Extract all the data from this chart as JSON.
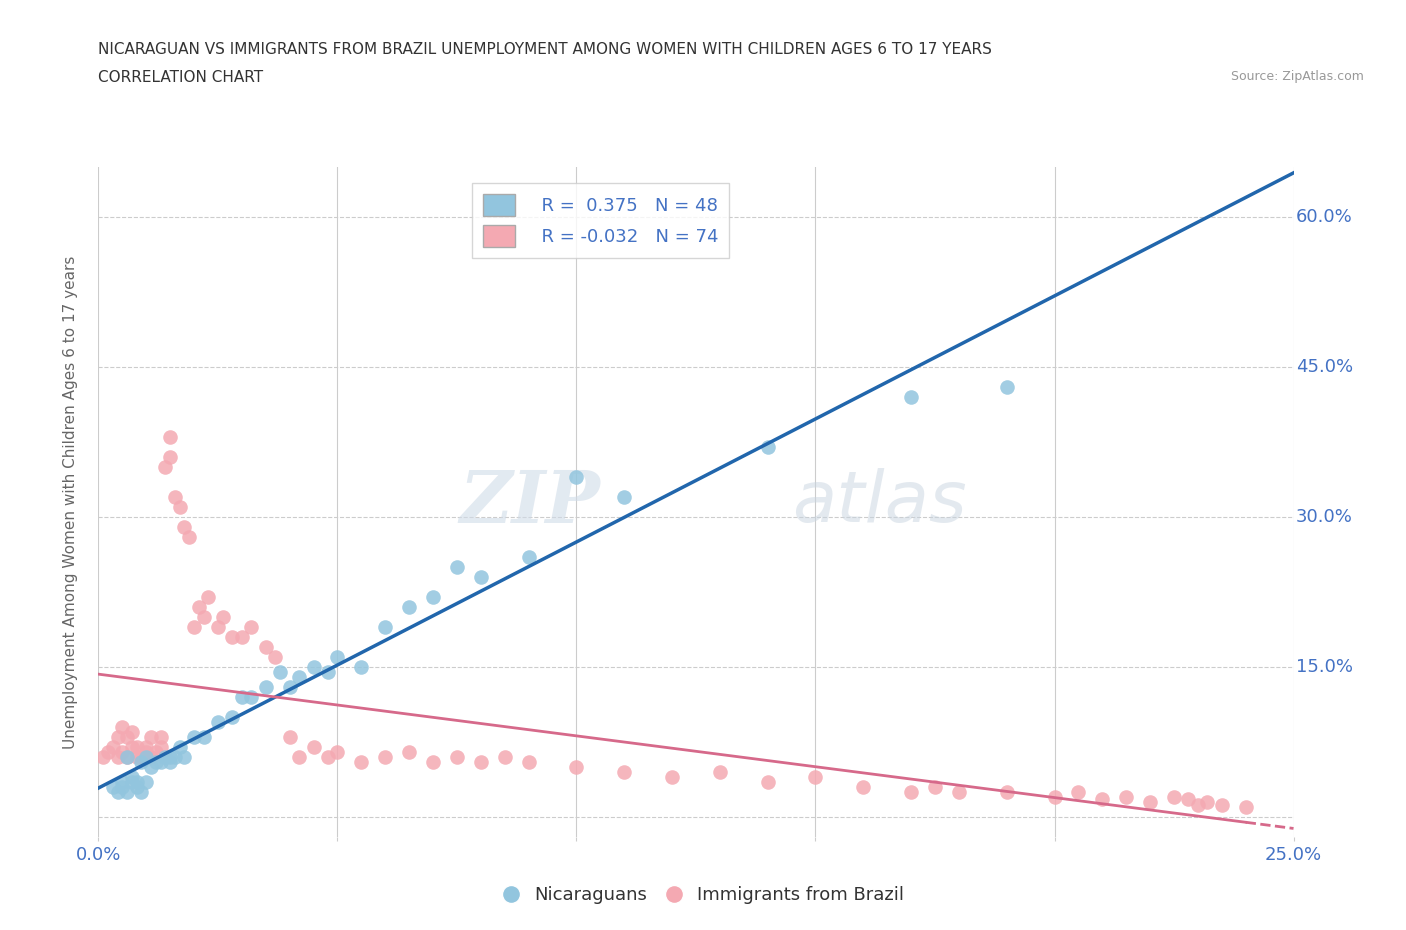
{
  "title_line1": "NICARAGUAN VS IMMIGRANTS FROM BRAZIL UNEMPLOYMENT AMONG WOMEN WITH CHILDREN AGES 6 TO 17 YEARS",
  "title_line2": "CORRELATION CHART",
  "source_text": "Source: ZipAtlas.com",
  "ylabel": "Unemployment Among Women with Children Ages 6 to 17 years",
  "xlim": [
    0.0,
    0.25
  ],
  "ylim": [
    -0.02,
    0.65
  ],
  "x_ticks": [
    0.0,
    0.05,
    0.1,
    0.15,
    0.2,
    0.25
  ],
  "x_tick_labels": [
    "0.0%",
    "",
    "",
    "",
    "",
    "25.0%"
  ],
  "y_ticks": [
    0.0,
    0.15,
    0.3,
    0.45,
    0.6
  ],
  "y_tick_labels": [
    "",
    "15.0%",
    "30.0%",
    "45.0%",
    "60.0%"
  ],
  "legend_R1": "R =  0.375",
  "legend_N1": "N = 48",
  "legend_R2": "R = -0.032",
  "legend_N2": "N = 74",
  "color_nicaraguan": "#92c5de",
  "color_brazil": "#f4a9b2",
  "color_line_nicaraguan": "#2166ac",
  "color_line_brazil": "#d6698a",
  "watermark_zip": "ZIP",
  "watermark_atlas": "atlas",
  "nicaraguan_x": [
    0.003,
    0.004,
    0.005,
    0.005,
    0.006,
    0.006,
    0.007,
    0.007,
    0.008,
    0.008,
    0.009,
    0.009,
    0.01,
    0.01,
    0.011,
    0.012,
    0.013,
    0.014,
    0.015,
    0.015,
    0.016,
    0.017,
    0.018,
    0.02,
    0.022,
    0.025,
    0.028,
    0.03,
    0.032,
    0.035,
    0.038,
    0.04,
    0.042,
    0.045,
    0.048,
    0.05,
    0.055,
    0.06,
    0.065,
    0.07,
    0.075,
    0.08,
    0.09,
    0.1,
    0.11,
    0.14,
    0.17,
    0.19
  ],
  "nicaraguan_y": [
    0.03,
    0.025,
    0.03,
    0.035,
    0.025,
    0.06,
    0.035,
    0.04,
    0.03,
    0.035,
    0.025,
    0.055,
    0.035,
    0.06,
    0.05,
    0.055,
    0.055,
    0.06,
    0.055,
    0.06,
    0.06,
    0.07,
    0.06,
    0.08,
    0.08,
    0.095,
    0.1,
    0.12,
    0.12,
    0.13,
    0.145,
    0.13,
    0.14,
    0.15,
    0.145,
    0.16,
    0.15,
    0.19,
    0.21,
    0.22,
    0.25,
    0.24,
    0.26,
    0.34,
    0.32,
    0.37,
    0.42,
    0.43
  ],
  "brazil_x": [
    0.001,
    0.002,
    0.003,
    0.004,
    0.004,
    0.005,
    0.005,
    0.006,
    0.006,
    0.007,
    0.007,
    0.008,
    0.008,
    0.009,
    0.01,
    0.01,
    0.011,
    0.011,
    0.012,
    0.013,
    0.013,
    0.014,
    0.015,
    0.015,
    0.016,
    0.017,
    0.018,
    0.019,
    0.02,
    0.021,
    0.022,
    0.023,
    0.025,
    0.026,
    0.028,
    0.03,
    0.032,
    0.035,
    0.037,
    0.04,
    0.042,
    0.045,
    0.048,
    0.05,
    0.055,
    0.06,
    0.065,
    0.07,
    0.075,
    0.08,
    0.085,
    0.09,
    0.1,
    0.11,
    0.12,
    0.13,
    0.14,
    0.15,
    0.16,
    0.17,
    0.175,
    0.18,
    0.19,
    0.2,
    0.205,
    0.21,
    0.215,
    0.22,
    0.225,
    0.228,
    0.23,
    0.232,
    0.235,
    0.24
  ],
  "brazil_y": [
    0.06,
    0.065,
    0.07,
    0.06,
    0.08,
    0.065,
    0.09,
    0.06,
    0.08,
    0.07,
    0.085,
    0.06,
    0.07,
    0.06,
    0.065,
    0.07,
    0.06,
    0.08,
    0.065,
    0.07,
    0.08,
    0.35,
    0.38,
    0.36,
    0.32,
    0.31,
    0.29,
    0.28,
    0.19,
    0.21,
    0.2,
    0.22,
    0.19,
    0.2,
    0.18,
    0.18,
    0.19,
    0.17,
    0.16,
    0.08,
    0.06,
    0.07,
    0.06,
    0.065,
    0.055,
    0.06,
    0.065,
    0.055,
    0.06,
    0.055,
    0.06,
    0.055,
    0.05,
    0.045,
    0.04,
    0.045,
    0.035,
    0.04,
    0.03,
    0.025,
    0.03,
    0.025,
    0.025,
    0.02,
    0.025,
    0.018,
    0.02,
    0.015,
    0.02,
    0.018,
    0.012,
    0.015,
    0.012,
    0.01
  ]
}
